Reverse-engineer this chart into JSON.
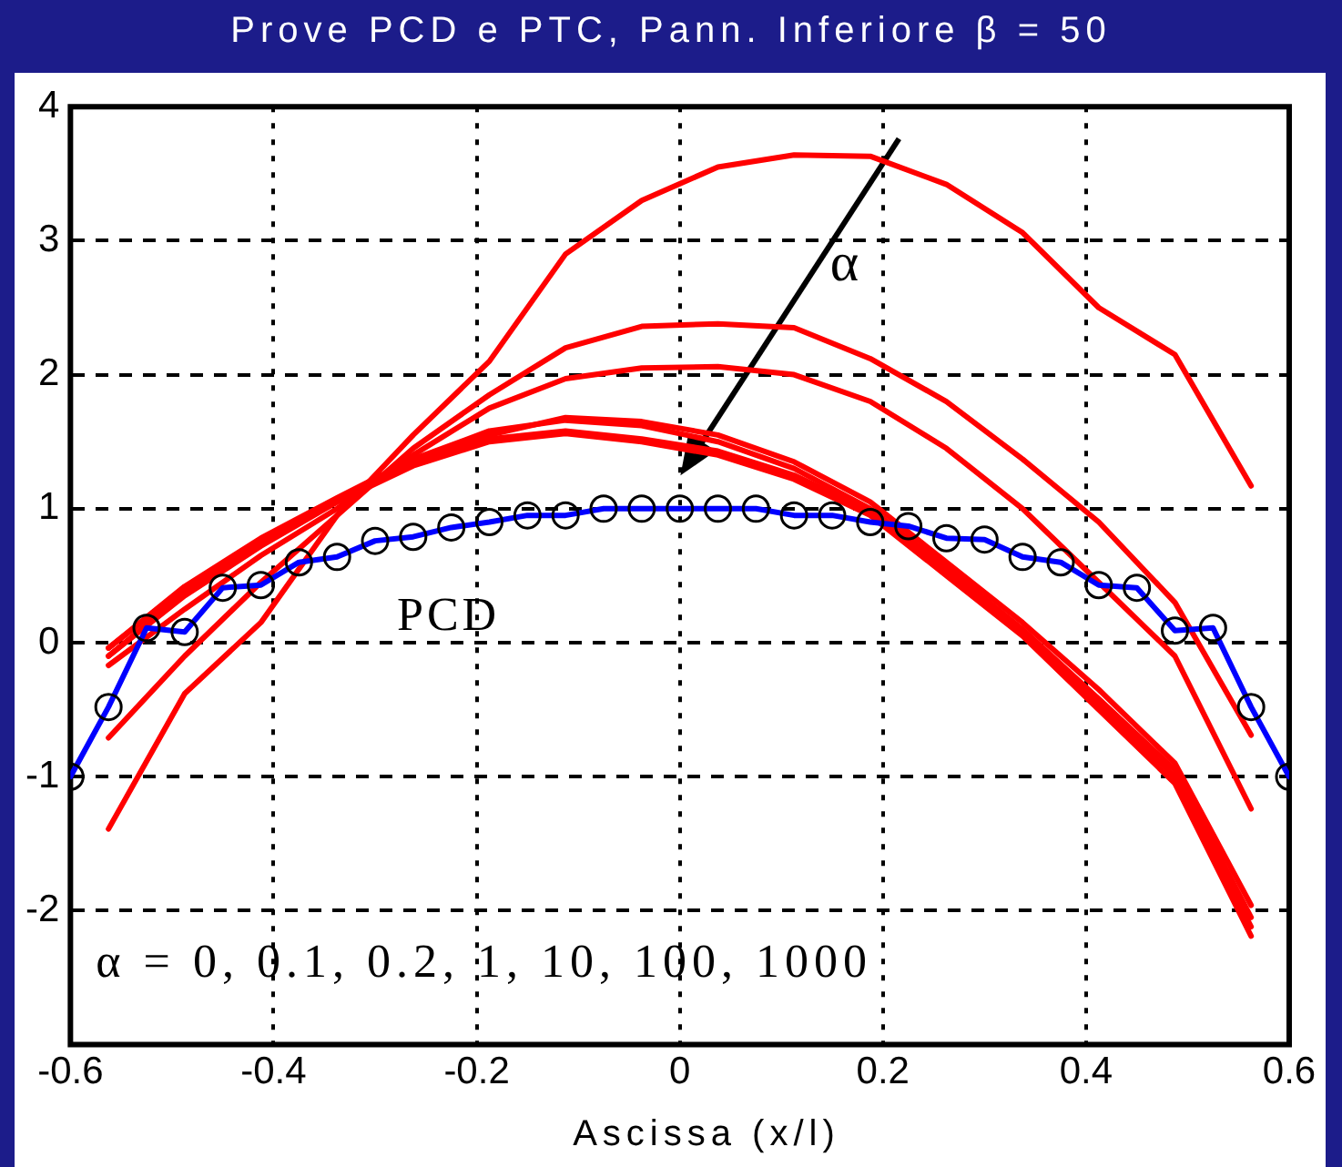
{
  "chart_data": {
    "type": "line",
    "title": "Prove PCD e PTC, Pann. Inferiore β = 50",
    "xlabel": "Ascissa (x/l)",
    "xlim": [
      -0.6,
      0.6
    ],
    "xticks": [
      -0.6,
      -0.4,
      -0.2,
      0,
      0.2,
      0.4,
      0.6
    ],
    "ylim": [
      -3,
      4
    ],
    "yticks": [
      -2,
      -1,
      0,
      1,
      2,
      3,
      4
    ],
    "grid": true,
    "legend": false,
    "line_style": "solid",
    "annotations": [
      "α",
      "α = 0, 0.1, 0.2, 1, 10, 100, 1000"
    ],
    "series": [
      {
        "color": "#ff0000",
        "marker": "none",
        "x": [
          -0.5625,
          -0.4875,
          -0.4125,
          -0.3375,
          -0.2625,
          -0.1875,
          -0.1125,
          -0.0375,
          0.0375,
          0.1125,
          0.1875,
          0.2625,
          0.3375,
          0.4125,
          0.4875,
          0.5625
        ],
        "values": [
          -1.39,
          -0.38,
          0.15,
          0.95,
          1.55,
          2.1,
          2.9,
          3.3,
          3.55,
          3.64,
          3.63,
          3.42,
          3.06,
          2.5,
          2.15,
          1.17
        ]
      },
      {
        "color": "#ff0000",
        "marker": "none",
        "x": [
          -0.5625,
          -0.4875,
          -0.4125,
          -0.3375,
          -0.2625,
          -0.1875,
          -0.1125,
          -0.0375,
          0.0375,
          0.1125,
          0.1875,
          0.2625,
          0.3375,
          0.4125,
          0.4875,
          0.5625
        ],
        "values": [
          -0.71,
          -0.1,
          0.45,
          0.95,
          1.45,
          1.85,
          2.2,
          2.36,
          2.38,
          2.35,
          2.12,
          1.8,
          1.37,
          0.9,
          0.3,
          -0.69
        ]
      },
      {
        "color": "#ff0000",
        "marker": "none",
        "x": [
          -0.5625,
          -0.4875,
          -0.4125,
          -0.3375,
          -0.2625,
          -0.1875,
          -0.1125,
          -0.0375,
          0.0375,
          0.1125,
          0.1875,
          0.2625,
          0.3375,
          0.4125,
          0.4875,
          0.5625
        ],
        "values": [
          -0.17,
          0.25,
          0.65,
          1.0,
          1.4,
          1.75,
          1.97,
          2.05,
          2.06,
          2.0,
          1.8,
          1.45,
          1.0,
          0.45,
          -0.1,
          -1.24
        ]
      },
      {
        "color": "#ff0000",
        "marker": "none",
        "x": [
          -0.5625,
          -0.4875,
          -0.4125,
          -0.3375,
          -0.2625,
          -0.1875,
          -0.1125,
          -0.0375,
          0.0375,
          0.1125,
          0.1875,
          0.2625,
          0.3375,
          0.4125,
          0.4875,
          0.5625
        ],
        "values": [
          -0.04,
          0.4,
          0.75,
          1.05,
          1.35,
          1.55,
          1.68,
          1.65,
          1.55,
          1.35,
          1.05,
          0.6,
          0.15,
          -0.35,
          -0.9,
          -1.96
        ]
      },
      {
        "color": "#ff0000",
        "marker": "none",
        "x": [
          -0.5625,
          -0.4875,
          -0.4125,
          -0.3375,
          -0.2625,
          -0.1875,
          -0.1125,
          -0.0375,
          0.0375,
          0.1125,
          0.1875,
          0.2625,
          0.3375,
          0.4125,
          0.4875,
          0.5625
        ],
        "values": [
          -0.04,
          0.42,
          0.78,
          1.08,
          1.37,
          1.58,
          1.66,
          1.62,
          1.5,
          1.3,
          1.0,
          0.56,
          0.1,
          -0.42,
          -0.95,
          -2.05
        ]
      },
      {
        "color": "#ff0000",
        "marker": "none",
        "x": [
          -0.5625,
          -0.4875,
          -0.4125,
          -0.3375,
          -0.2625,
          -0.1875,
          -0.1125,
          -0.0375,
          0.0375,
          0.1125,
          0.1875,
          0.2625,
          0.3375,
          0.4125,
          0.4875,
          0.5625
        ],
        "values": [
          -0.1,
          0.37,
          0.74,
          1.06,
          1.33,
          1.52,
          1.58,
          1.52,
          1.43,
          1.25,
          0.98,
          0.53,
          0.08,
          -0.46,
          -1.0,
          -2.12
        ]
      },
      {
        "color": "#ff0000",
        "marker": "none",
        "x": [
          -0.5625,
          -0.4875,
          -0.4125,
          -0.3375,
          -0.2625,
          -0.1875,
          -0.1125,
          -0.0375,
          0.0375,
          0.1125,
          0.1875,
          0.2625,
          0.3375,
          0.4125,
          0.4875,
          0.5625
        ],
        "values": [
          -0.1,
          0.35,
          0.72,
          1.05,
          1.32,
          1.5,
          1.56,
          1.5,
          1.4,
          1.22,
          0.95,
          0.5,
          0.05,
          -0.5,
          -1.05,
          -2.19
        ]
      },
      {
        "name": "PCD",
        "color": "#0000ff",
        "marker": "circle",
        "x": [
          -0.6,
          -0.5625,
          -0.525,
          -0.4875,
          -0.45,
          -0.4125,
          -0.375,
          -0.3375,
          -0.3,
          -0.2625,
          -0.225,
          -0.1875,
          -0.15,
          -0.1125,
          -0.075,
          -0.0375,
          0,
          0.0375,
          0.075,
          0.1125,
          0.15,
          0.1875,
          0.225,
          0.2625,
          0.3,
          0.3375,
          0.375,
          0.4125,
          0.45,
          0.4875,
          0.525,
          0.5625,
          0.6
        ],
        "values": [
          -1,
          -0.48,
          0.11,
          0.08,
          0.41,
          0.43,
          0.6,
          0.64,
          0.76,
          0.79,
          0.86,
          0.9,
          0.95,
          0.95,
          1,
          1,
          1,
          1,
          1,
          0.95,
          0.95,
          0.9,
          0.87,
          0.78,
          0.77,
          0.64,
          0.6,
          0.43,
          0.41,
          0.09,
          0.11,
          -0.48,
          -1
        ]
      }
    ]
  }
}
